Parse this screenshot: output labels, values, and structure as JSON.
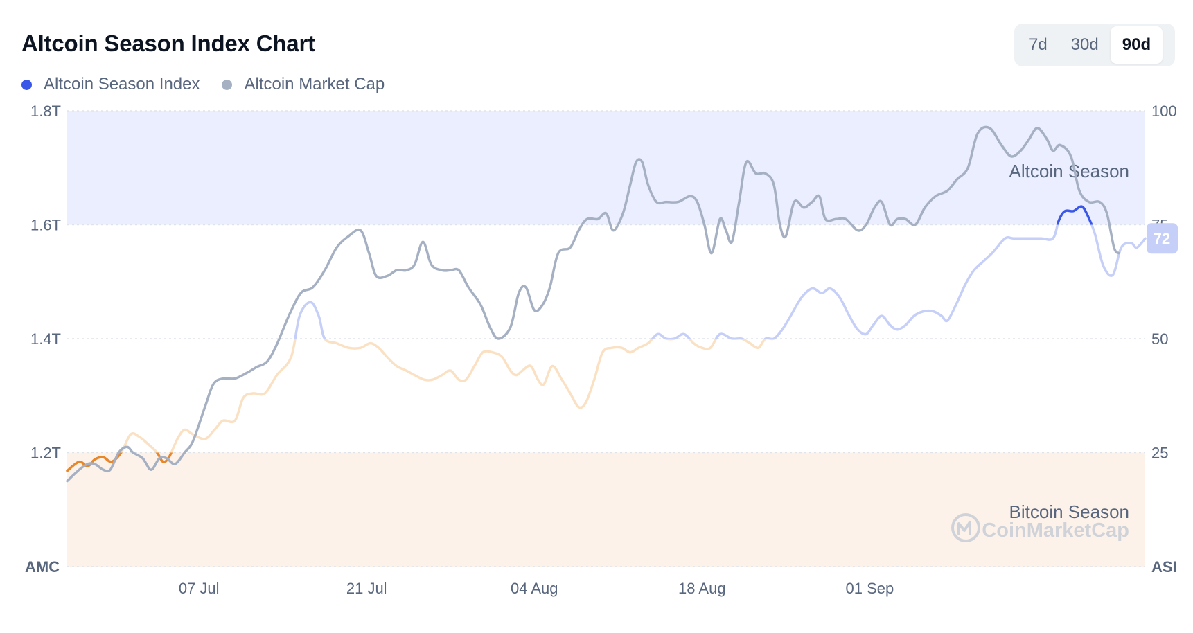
{
  "title": "Altcoin Season Index Chart",
  "range_tabs": [
    {
      "label": "7d",
      "active": false
    },
    {
      "label": "30d",
      "active": false
    },
    {
      "label": "90d",
      "active": true
    }
  ],
  "legend": [
    {
      "label": "Altcoin Season Index",
      "color": "#3a57e8"
    },
    {
      "label": "Altcoin Market Cap",
      "color": "#a6b0c3"
    }
  ],
  "zones": {
    "altcoin_label": "Altcoin Season",
    "bitcoin_label": "Bitcoin Season",
    "altcoin_color": "#eaeeff",
    "bitcoin_color": "#fdf2ea"
  },
  "watermark": "CoinMarketCap",
  "chart_data": {
    "type": "line",
    "left_axis": {
      "name": "AMC",
      "ticks": [
        "1.2T",
        "1.4T",
        "1.6T",
        "1.8T"
      ],
      "range": [
        1.0,
        1.8
      ],
      "unit": "T"
    },
    "right_axis": {
      "name": "ASI",
      "ticks": [
        "25",
        "50",
        "75",
        "100"
      ],
      "range": [
        0,
        100
      ]
    },
    "x_ticks": [
      {
        "label": "07 Jul",
        "day": 11
      },
      {
        "label": "21 Jul",
        "day": 25
      },
      {
        "label": "04 Aug",
        "day": 39
      },
      {
        "label": "18 Aug",
        "day": 53
      },
      {
        "label": "01 Sep",
        "day": 67
      }
    ],
    "x_range_days": [
      0,
      90
    ],
    "current_value_label": "72",
    "series": [
      {
        "name": "Altcoin Season Index",
        "axis": "right",
        "color_bitcoin": "#e8862a",
        "color_neutral_low": "#fbe1c4",
        "color_neutral_high": "#c6cff7",
        "color_altcoin": "#3a57e8",
        "points": [
          [
            0,
            21
          ],
          [
            1,
            23
          ],
          [
            1.7,
            22
          ],
          [
            2.3,
            23.5
          ],
          [
            3,
            24
          ],
          [
            3.7,
            23
          ],
          [
            4.5,
            25
          ],
          [
            5.3,
            29
          ],
          [
            6,
            28.5
          ],
          [
            6.7,
            27
          ],
          [
            7.5,
            25
          ],
          [
            8,
            23
          ],
          [
            8.5,
            24
          ],
          [
            9.2,
            28
          ],
          [
            9.8,
            30
          ],
          [
            10.5,
            29
          ],
          [
            11.5,
            28
          ],
          [
            12.3,
            30
          ],
          [
            13,
            32
          ],
          [
            14,
            32
          ],
          [
            14.7,
            37
          ],
          [
            15.5,
            38
          ],
          [
            16.5,
            38
          ],
          [
            17.5,
            42
          ],
          [
            18.7,
            46
          ],
          [
            19.4,
            55
          ],
          [
            20.3,
            58
          ],
          [
            21,
            55
          ],
          [
            21.5,
            50
          ],
          [
            22.5,
            49
          ],
          [
            23.5,
            48
          ],
          [
            24.5,
            48
          ],
          [
            25.3,
            49
          ],
          [
            26,
            48
          ],
          [
            26.7,
            46
          ],
          [
            27.5,
            44
          ],
          [
            28.3,
            43
          ],
          [
            29,
            42
          ],
          [
            29.8,
            41
          ],
          [
            30.5,
            41
          ],
          [
            31.3,
            42
          ],
          [
            32,
            43
          ],
          [
            32.7,
            41
          ],
          [
            33.3,
            41
          ],
          [
            34,
            44
          ],
          [
            34.7,
            47
          ],
          [
            35.5,
            47
          ],
          [
            36.3,
            46
          ],
          [
            37,
            43
          ],
          [
            37.5,
            42
          ],
          [
            38,
            43
          ],
          [
            38.7,
            44
          ],
          [
            39.3,
            41
          ],
          [
            39.8,
            40
          ],
          [
            40.5,
            44
          ],
          [
            41.3,
            41
          ],
          [
            42,
            38
          ],
          [
            42.7,
            35
          ],
          [
            43.3,
            36
          ],
          [
            44,
            41
          ],
          [
            44.7,
            47
          ],
          [
            45.5,
            48
          ],
          [
            46.3,
            48
          ],
          [
            47,
            47
          ],
          [
            47.7,
            48
          ],
          [
            48.5,
            49
          ],
          [
            49.3,
            51
          ],
          [
            50,
            50
          ],
          [
            50.7,
            50
          ],
          [
            51.5,
            51
          ],
          [
            52.3,
            49
          ],
          [
            53,
            48
          ],
          [
            53.7,
            48
          ],
          [
            54.5,
            51
          ],
          [
            55.5,
            50
          ],
          [
            56.3,
            50
          ],
          [
            57,
            49
          ],
          [
            57.7,
            48
          ],
          [
            58.3,
            50
          ],
          [
            59,
            50
          ],
          [
            59.7,
            52
          ],
          [
            60.4,
            55
          ],
          [
            61.3,
            59
          ],
          [
            62.2,
            61
          ],
          [
            63,
            60
          ],
          [
            63.7,
            61
          ],
          [
            64.5,
            59
          ],
          [
            65.3,
            55
          ],
          [
            66,
            52
          ],
          [
            66.7,
            51
          ],
          [
            67.3,
            53
          ],
          [
            68,
            55
          ],
          [
            68.7,
            53
          ],
          [
            69.3,
            52
          ],
          [
            70,
            53
          ],
          [
            70.7,
            55
          ],
          [
            71.5,
            56
          ],
          [
            72.3,
            56
          ],
          [
            73,
            55
          ],
          [
            73.5,
            54
          ],
          [
            74.3,
            58
          ],
          [
            75,
            62
          ],
          [
            75.7,
            65
          ],
          [
            76.5,
            67
          ],
          [
            77.3,
            69
          ],
          [
            78.3,
            72
          ],
          [
            79,
            72
          ],
          [
            80,
            72
          ],
          [
            81.3,
            72
          ],
          [
            82.3,
            72
          ],
          [
            82.8,
            76
          ],
          [
            83.3,
            78
          ],
          [
            84,
            78
          ],
          [
            84.7,
            79
          ],
          [
            85.2,
            77
          ],
          [
            85.8,
            73
          ],
          [
            86.5,
            66
          ],
          [
            87.3,
            64
          ],
          [
            88,
            70
          ],
          [
            88.8,
            71
          ],
          [
            89.3,
            70
          ],
          [
            90,
            72
          ]
        ]
      },
      {
        "name": "Altcoin Market Cap",
        "axis": "left",
        "color": "#a6b0c3",
        "points": [
          [
            0,
            1.15
          ],
          [
            1,
            1.17
          ],
          [
            1.7,
            1.18
          ],
          [
            2.3,
            1.18
          ],
          [
            3,
            1.17
          ],
          [
            3.6,
            1.17
          ],
          [
            4.3,
            1.2
          ],
          [
            5,
            1.21
          ],
          [
            5.5,
            1.2
          ],
          [
            6.3,
            1.19
          ],
          [
            7,
            1.17
          ],
          [
            7.7,
            1.19
          ],
          [
            8.3,
            1.19
          ],
          [
            9,
            1.18
          ],
          [
            9.8,
            1.2
          ],
          [
            10.5,
            1.22
          ],
          [
            11.5,
            1.28
          ],
          [
            12.2,
            1.32
          ],
          [
            13,
            1.33
          ],
          [
            14,
            1.33
          ],
          [
            15,
            1.34
          ],
          [
            15.8,
            1.35
          ],
          [
            16.7,
            1.36
          ],
          [
            17.5,
            1.39
          ],
          [
            18.5,
            1.44
          ],
          [
            19.5,
            1.48
          ],
          [
            20.5,
            1.49
          ],
          [
            21.5,
            1.52
          ],
          [
            22.5,
            1.56
          ],
          [
            23.5,
            1.58
          ],
          [
            24.5,
            1.59
          ],
          [
            25.2,
            1.55
          ],
          [
            25.8,
            1.51
          ],
          [
            26.7,
            1.51
          ],
          [
            27.5,
            1.52
          ],
          [
            28.3,
            1.52
          ],
          [
            29,
            1.53
          ],
          [
            29.7,
            1.57
          ],
          [
            30.4,
            1.53
          ],
          [
            31.3,
            1.52
          ],
          [
            32,
            1.52
          ],
          [
            32.7,
            1.52
          ],
          [
            33.5,
            1.49
          ],
          [
            34.5,
            1.46
          ],
          [
            35.3,
            1.42
          ],
          [
            36,
            1.4
          ],
          [
            37,
            1.42
          ],
          [
            37.7,
            1.48
          ],
          [
            38.3,
            1.49
          ],
          [
            39,
            1.45
          ],
          [
            39.7,
            1.46
          ],
          [
            40.3,
            1.49
          ],
          [
            41,
            1.55
          ],
          [
            42,
            1.56
          ],
          [
            42.7,
            1.59
          ],
          [
            43.4,
            1.61
          ],
          [
            44.3,
            1.61
          ],
          [
            45,
            1.62
          ],
          [
            45.6,
            1.59
          ],
          [
            46.4,
            1.62
          ],
          [
            47,
            1.67
          ],
          [
            47.5,
            1.71
          ],
          [
            48,
            1.71
          ],
          [
            48.5,
            1.67
          ],
          [
            49.2,
            1.64
          ],
          [
            50,
            1.64
          ],
          [
            51,
            1.64
          ],
          [
            52,
            1.65
          ],
          [
            52.6,
            1.64
          ],
          [
            53.2,
            1.6
          ],
          [
            53.8,
            1.55
          ],
          [
            54.5,
            1.61
          ],
          [
            55,
            1.59
          ],
          [
            55.5,
            1.57
          ],
          [
            56.1,
            1.64
          ],
          [
            56.7,
            1.71
          ],
          [
            57.5,
            1.69
          ],
          [
            58.3,
            1.69
          ],
          [
            59,
            1.67
          ],
          [
            59.5,
            1.6
          ],
          [
            60,
            1.58
          ],
          [
            60.7,
            1.64
          ],
          [
            61.5,
            1.63
          ],
          [
            62.2,
            1.64
          ],
          [
            62.8,
            1.65
          ],
          [
            63.3,
            1.61
          ],
          [
            64.2,
            1.61
          ],
          [
            65,
            1.61
          ],
          [
            66,
            1.59
          ],
          [
            66.7,
            1.6
          ],
          [
            67.4,
            1.63
          ],
          [
            68,
            1.64
          ],
          [
            68.7,
            1.6
          ],
          [
            69.3,
            1.61
          ],
          [
            70,
            1.61
          ],
          [
            70.8,
            1.6
          ],
          [
            71.6,
            1.63
          ],
          [
            72.5,
            1.65
          ],
          [
            73.5,
            1.66
          ],
          [
            74.3,
            1.68
          ],
          [
            75.2,
            1.7
          ],
          [
            76,
            1.76
          ],
          [
            77,
            1.77
          ],
          [
            78,
            1.74
          ],
          [
            78.8,
            1.72
          ],
          [
            79.6,
            1.73
          ],
          [
            80.3,
            1.75
          ],
          [
            81,
            1.77
          ],
          [
            81.8,
            1.75
          ],
          [
            82.3,
            1.73
          ],
          [
            82.9,
            1.74
          ],
          [
            83.8,
            1.72
          ],
          [
            84.5,
            1.66
          ],
          [
            85.3,
            1.64
          ],
          [
            86.2,
            1.64
          ],
          [
            86.8,
            1.62
          ],
          [
            87.4,
            1.56
          ],
          [
            87.8,
            1.55
          ]
        ]
      }
    ],
    "grid": true
  }
}
